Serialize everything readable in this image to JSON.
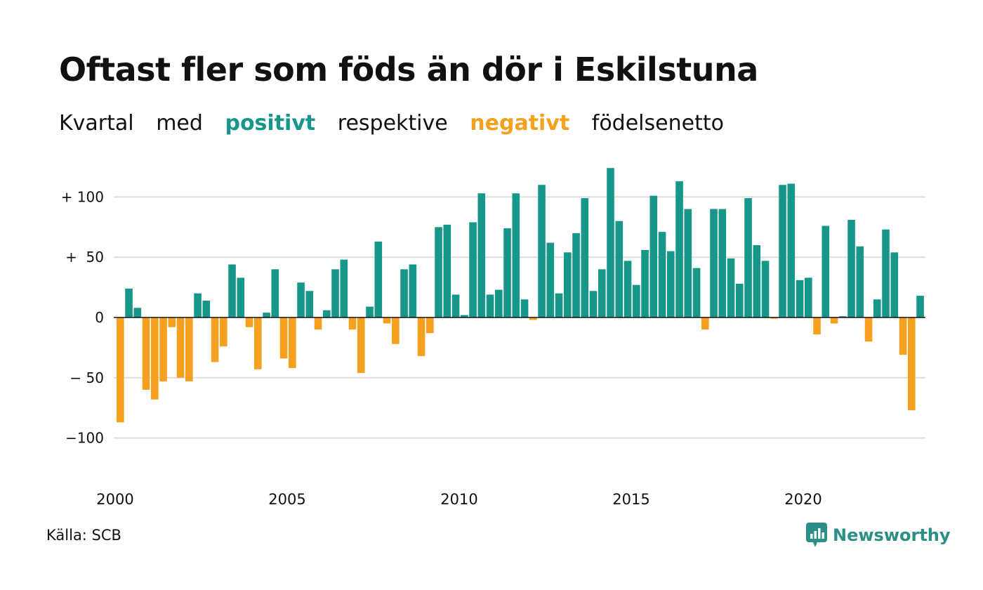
{
  "title": "Oftast fler som föds än dör i Eskilstuna",
  "subtitle": {
    "w1": "Kvartal",
    "w2": "med",
    "positive": "positivt",
    "w3": "respektive",
    "negative": "negativt",
    "w4": "födelsenetto"
  },
  "source": "Källa: SCB",
  "logo": {
    "text": "Newsworthy",
    "icon": "newsworthy-logo-icon"
  },
  "colors": {
    "positive": "#17968a",
    "negative": "#f5a01e",
    "grid": "#dddddd",
    "logo": "#2a8f86"
  },
  "chart_data": {
    "type": "bar",
    "title": "Oftast fler som föds än dör i Eskilstuna",
    "subtitle": "Kvartal med positivt respektive negativt födelsenetto",
    "x_start_year": 2000,
    "periods_per_year": 4,
    "values": [
      -87,
      24,
      8,
      -60,
      -68,
      -53,
      -8,
      -50,
      -53,
      20,
      14,
      -37,
      -24,
      44,
      33,
      -8,
      -43,
      4,
      40,
      -34,
      -42,
      29,
      22,
      -10,
      6,
      40,
      48,
      -10,
      -46,
      9,
      63,
      -5,
      -22,
      40,
      44,
      -32,
      -13,
      75,
      77,
      19,
      2,
      79,
      103,
      19,
      23,
      74,
      103,
      15,
      -2,
      110,
      62,
      20,
      54,
      70,
      99,
      22,
      40,
      124,
      80,
      47,
      27,
      56,
      101,
      71,
      55,
      113,
      90,
      41,
      -10,
      90,
      90,
      49,
      28,
      99,
      60,
      47,
      -1,
      110,
      111,
      31,
      33,
      -14,
      76,
      -5,
      1,
      81,
      59,
      -20,
      15,
      73,
      54,
      -31,
      -77,
      18
    ],
    "ylim": [
      -100,
      125
    ],
    "yticks": [
      100,
      50,
      0,
      -50,
      -100
    ],
    "ytick_labels": [
      "+ 100",
      "+  50",
      "0",
      "− 50",
      "−100"
    ],
    "xtick_labels": [
      "2000",
      "2005",
      "2010",
      "2015",
      "2020"
    ],
    "grid": true,
    "xlabel": "",
    "ylabel": ""
  }
}
